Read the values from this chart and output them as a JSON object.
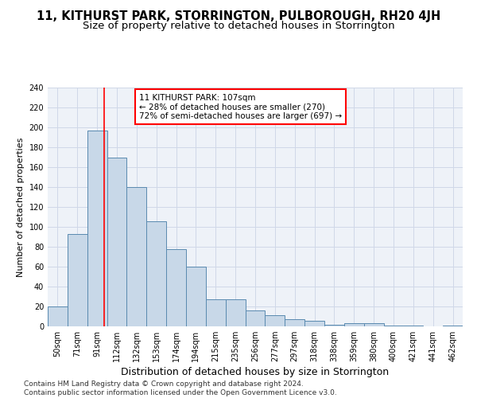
{
  "title": "11, KITHURST PARK, STORRINGTON, PULBOROUGH, RH20 4JH",
  "subtitle": "Size of property relative to detached houses in Storrington",
  "xlabel": "Distribution of detached houses by size in Storrington",
  "ylabel": "Number of detached properties",
  "categories": [
    "50sqm",
    "71sqm",
    "91sqm",
    "112sqm",
    "132sqm",
    "153sqm",
    "174sqm",
    "194sqm",
    "215sqm",
    "235sqm",
    "256sqm",
    "277sqm",
    "297sqm",
    "318sqm",
    "338sqm",
    "359sqm",
    "380sqm",
    "400sqm",
    "421sqm",
    "441sqm",
    "462sqm"
  ],
  "values": [
    20,
    93,
    197,
    170,
    140,
    106,
    78,
    60,
    27,
    27,
    16,
    11,
    7,
    6,
    2,
    3,
    3,
    1,
    1,
    0,
    1
  ],
  "bar_color": "#c8d8e8",
  "bar_edge_color": "#5a8ab0",
  "red_line_x": 2.35,
  "annotation_text": "11 KITHURST PARK: 107sqm\n← 28% of detached houses are smaller (270)\n72% of semi-detached houses are larger (697) →",
  "annotation_box_color": "white",
  "annotation_box_edge_color": "red",
  "ylim": [
    0,
    240
  ],
  "yticks": [
    0,
    20,
    40,
    60,
    80,
    100,
    120,
    140,
    160,
    180,
    200,
    220,
    240
  ],
  "grid_color": "#d0d8e8",
  "bg_color": "#eef2f8",
  "footnote": "Contains HM Land Registry data © Crown copyright and database right 2024.\nContains public sector information licensed under the Open Government Licence v3.0.",
  "title_fontsize": 10.5,
  "subtitle_fontsize": 9.5,
  "annot_fontsize": 7.5,
  "ylabel_fontsize": 8,
  "xlabel_fontsize": 9,
  "tick_fontsize": 7,
  "footnote_fontsize": 6.5
}
